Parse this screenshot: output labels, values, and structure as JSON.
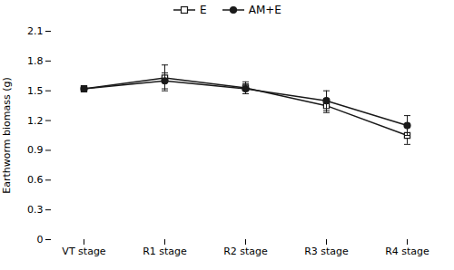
{
  "chart_data": {
    "type": "line",
    "categories": [
      "VT stage",
      "R1 stage",
      "R2 stage",
      "R3 stage",
      "R4 stage"
    ],
    "series": [
      {
        "name": "E",
        "color": "#1a1a1a",
        "marker": "square",
        "values": [
          1.52,
          1.63,
          1.53,
          1.35,
          1.05
        ],
        "errors": [
          0.03,
          0.13,
          0.06,
          0.07,
          0.09
        ]
      },
      {
        "name": "AM+E",
        "color": "#1a1a1a",
        "marker": "circle",
        "values": [
          1.52,
          1.6,
          1.52,
          1.4,
          1.15
        ],
        "errors": [
          0.03,
          0.08,
          0.05,
          0.1,
          0.1
        ]
      }
    ],
    "ylabel": "Earthworm biomass (g)",
    "ylim": [
      0,
      2.1
    ],
    "yticks": [
      0,
      0.3,
      0.6,
      0.9,
      1.2,
      1.5,
      1.8,
      2.1
    ],
    "grid": false,
    "legend": "top"
  }
}
